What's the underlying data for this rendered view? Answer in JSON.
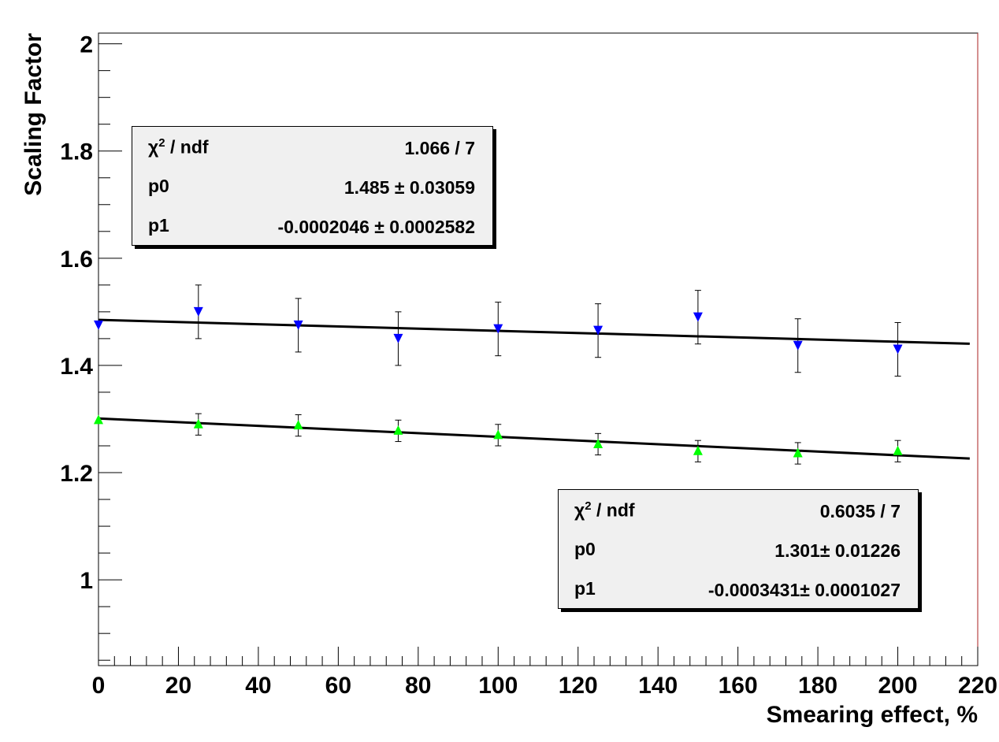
{
  "chart_data": {
    "type": "scatter",
    "xlabel": "Smearing effect, %",
    "ylabel": "Scaling Factor",
    "xlim": [
      0,
      220
    ],
    "ylim": [
      0.84,
      2.02
    ],
    "x_ticks": [
      "0",
      "20",
      "40",
      "60",
      "80",
      "100",
      "120",
      "140",
      "160",
      "180",
      "200",
      "220"
    ],
    "y_ticks": [
      "1",
      "1.2",
      "1.4",
      "1.6",
      "1.8",
      "2"
    ],
    "grid": false,
    "series": [
      {
        "marker": "triangle-down",
        "color": "#0000ff",
        "x": [
          0,
          25,
          50,
          75,
          100,
          125,
          150,
          175,
          200
        ],
        "y": [
          1.475,
          1.5,
          1.475,
          1.45,
          1.468,
          1.465,
          1.49,
          1.437,
          1.43
        ],
        "err": [
          0,
          0.05,
          0.05,
          0.05,
          0.05,
          0.05,
          0.05,
          0.05,
          0.05
        ],
        "fit": {
          "p0": 1.485,
          "p1": -0.0002046,
          "x_range": [
            0,
            218
          ]
        },
        "stats": {
          "chi2_label": "/ ndf",
          "chi2_value": "1.066 / 7",
          "p0_label": "p0",
          "p0_value": "1.485 ± 0.03059",
          "p1_label": "p1",
          "p1_value": "-0.0002046 ± 0.0002582"
        }
      },
      {
        "marker": "triangle-up",
        "color": "#00ff00",
        "x": [
          0,
          25,
          50,
          75,
          100,
          125,
          150,
          175,
          200
        ],
        "y": [
          1.298,
          1.29,
          1.288,
          1.278,
          1.27,
          1.253,
          1.24,
          1.236,
          1.24
        ],
        "err": [
          0,
          0.02,
          0.02,
          0.02,
          0.02,
          0.02,
          0.02,
          0.02,
          0.02
        ],
        "fit": {
          "p0": 1.301,
          "p1": -0.0003431,
          "x_range": [
            0,
            218
          ]
        },
        "stats": {
          "chi2_label": "/ ndf",
          "chi2_value": "0.6035 / 7",
          "p0_label": "p0",
          "p0_value": "1.301± 0.01226",
          "p1_label": "p1",
          "p1_value": "-0.0003431± 0.0001027"
        }
      }
    ]
  }
}
